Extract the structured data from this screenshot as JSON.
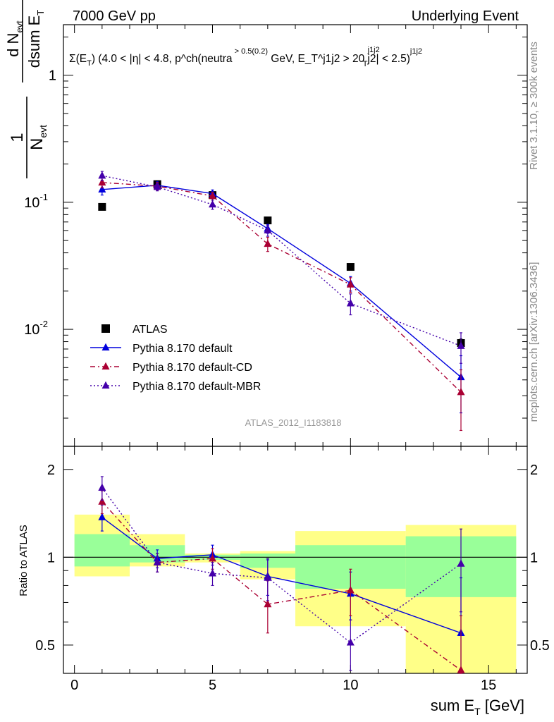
{
  "header": {
    "left": "7000 GeV pp",
    "right": "Underlying Event"
  },
  "side_labels": {
    "top": "Rivet 3.1.10, ≥ 300k events",
    "bottom": "mcplots.cern.ch [arXiv:1306.3436]"
  },
  "analysis_label": "ATLAS_2012_I1183818",
  "observable": "Σ(E_T) (4.0 < |η| < 4.8, p^ch(neutral) > 0.5(0.2) GeV, E_T^j1j2 > 20 GeV, |η^j1j2| < 2.5)",
  "colors": {
    "data": "#000000",
    "default": "#0000dd",
    "cd": "#aa0033",
    "mbr": "#4400aa",
    "band_inner": "#99ff99",
    "band_outer": "#ffff88"
  },
  "chart_data": [
    {
      "type": "line",
      "panel": "main",
      "title": "Σ(E_T) (4.0 < |η| < 4.8, p^ch(neutral) > 0.5(0.2) GeV, E_T^j1j2 > 20 GeV, |η^j1j2| < 2.5)",
      "xlabel": "sum E_T [GeV]",
      "ylabel": "1/N_evt dN_evt/dsum E_T [GeV^-1]",
      "y_scale": "log",
      "xlim": [
        -0.4,
        16.4
      ],
      "ylim": [
        0.0012,
        2.5
      ],
      "y_ticks": [
        {
          "value": 1,
          "label": "1"
        },
        {
          "value": 0.1,
          "label": "10^-1"
        },
        {
          "value": 0.01,
          "label": "10^-2"
        }
      ],
      "legend_position": "lower-left",
      "series": [
        {
          "name": "ATLAS",
          "style": "square",
          "x": [
            1,
            3,
            5,
            7,
            10,
            14
          ],
          "y": [
            0.092,
            0.139,
            0.114,
            0.072,
            0.031,
            0.0078
          ],
          "yerr": [
            0.003,
            0.004,
            0.004,
            0.003,
            0.0015,
            0.0006
          ]
        },
        {
          "name": "Pythia 8.170 default",
          "style": "solid",
          "x": [
            1,
            3,
            5,
            7,
            10,
            14
          ],
          "y": [
            0.126,
            0.136,
            0.117,
            0.062,
            0.023,
            0.0042
          ],
          "yerr": [
            0.012,
            0.009,
            0.008,
            0.005,
            0.003,
            0.002
          ]
        },
        {
          "name": "Pythia 8.170 default-CD",
          "style": "dashdot",
          "x": [
            1,
            3,
            5,
            7,
            10,
            14
          ],
          "y": [
            0.143,
            0.134,
            0.112,
            0.047,
            0.0225,
            0.0032
          ],
          "yerr": [
            0.013,
            0.009,
            0.008,
            0.006,
            0.003,
            0.0016
          ]
        },
        {
          "name": "Pythia 8.170 default-MBR",
          "style": "dotted",
          "x": [
            1,
            3,
            5,
            7,
            10,
            14
          ],
          "y": [
            0.162,
            0.132,
            0.096,
            0.06,
            0.016,
            0.0074
          ],
          "yerr": [
            0.013,
            0.009,
            0.008,
            0.006,
            0.003,
            0.002
          ]
        }
      ]
    },
    {
      "type": "line",
      "panel": "ratio",
      "xlabel": "sum E_T [GeV]",
      "ylabel": "Ratio to ATLAS",
      "y_scale": "log",
      "xlim": [
        -0.4,
        16.4
      ],
      "ylim": [
        0.4,
        2.4
      ],
      "y_ticks": [
        {
          "value": 0.5,
          "label": "0.5"
        },
        {
          "value": 1,
          "label": "1"
        },
        {
          "value": 2,
          "label": "2"
        }
      ],
      "x_ticks": [
        0,
        5,
        10,
        15
      ],
      "bands": [
        {
          "xmin": 0,
          "xmax": 2,
          "inner": [
            0.93,
            1.2
          ],
          "outer": [
            0.86,
            1.4
          ]
        },
        {
          "xmin": 2,
          "xmax": 4,
          "inner": [
            0.96,
            1.1
          ],
          "outer": [
            0.93,
            1.2
          ]
        },
        {
          "xmin": 4,
          "xmax": 6,
          "inner": [
            0.98,
            1.02
          ],
          "outer": [
            0.96,
            1.03
          ]
        },
        {
          "xmin": 6,
          "xmax": 8,
          "inner": [
            0.92,
            1.03
          ],
          "outer": [
            0.84,
            1.05
          ]
        },
        {
          "xmin": 8,
          "xmax": 12,
          "inner": [
            0.78,
            1.1
          ],
          "outer": [
            0.58,
            1.23
          ]
        },
        {
          "xmin": 12,
          "xmax": 16,
          "inner": [
            0.73,
            1.18
          ],
          "outer": [
            0.4,
            1.29
          ]
        }
      ],
      "series": [
        {
          "name": "Pythia 8.170 default",
          "style": "solid",
          "x": [
            1,
            3,
            5,
            7,
            10,
            14
          ],
          "y": [
            1.37,
            0.99,
            1.02,
            0.86,
            0.75,
            0.55
          ],
          "yerr": [
            0.14,
            0.07,
            0.08,
            0.12,
            0.14,
            0.3
          ]
        },
        {
          "name": "Pythia 8.170 default-CD",
          "style": "dashdot",
          "x": [
            1,
            3,
            5,
            7,
            10,
            14
          ],
          "y": [
            1.55,
            0.96,
            0.99,
            0.69,
            0.77,
            0.41
          ],
          "yerr": [
            0.14,
            0.07,
            0.08,
            0.14,
            0.14,
            0.22
          ]
        },
        {
          "name": "Pythia 8.170 default-MBR",
          "style": "dotted",
          "x": [
            1,
            3,
            5,
            7,
            10,
            14
          ],
          "y": [
            1.73,
            0.96,
            0.88,
            0.85,
            0.51,
            0.95
          ],
          "yerr": [
            0.16,
            0.07,
            0.08,
            0.14,
            0.1,
            0.3
          ]
        }
      ]
    }
  ]
}
